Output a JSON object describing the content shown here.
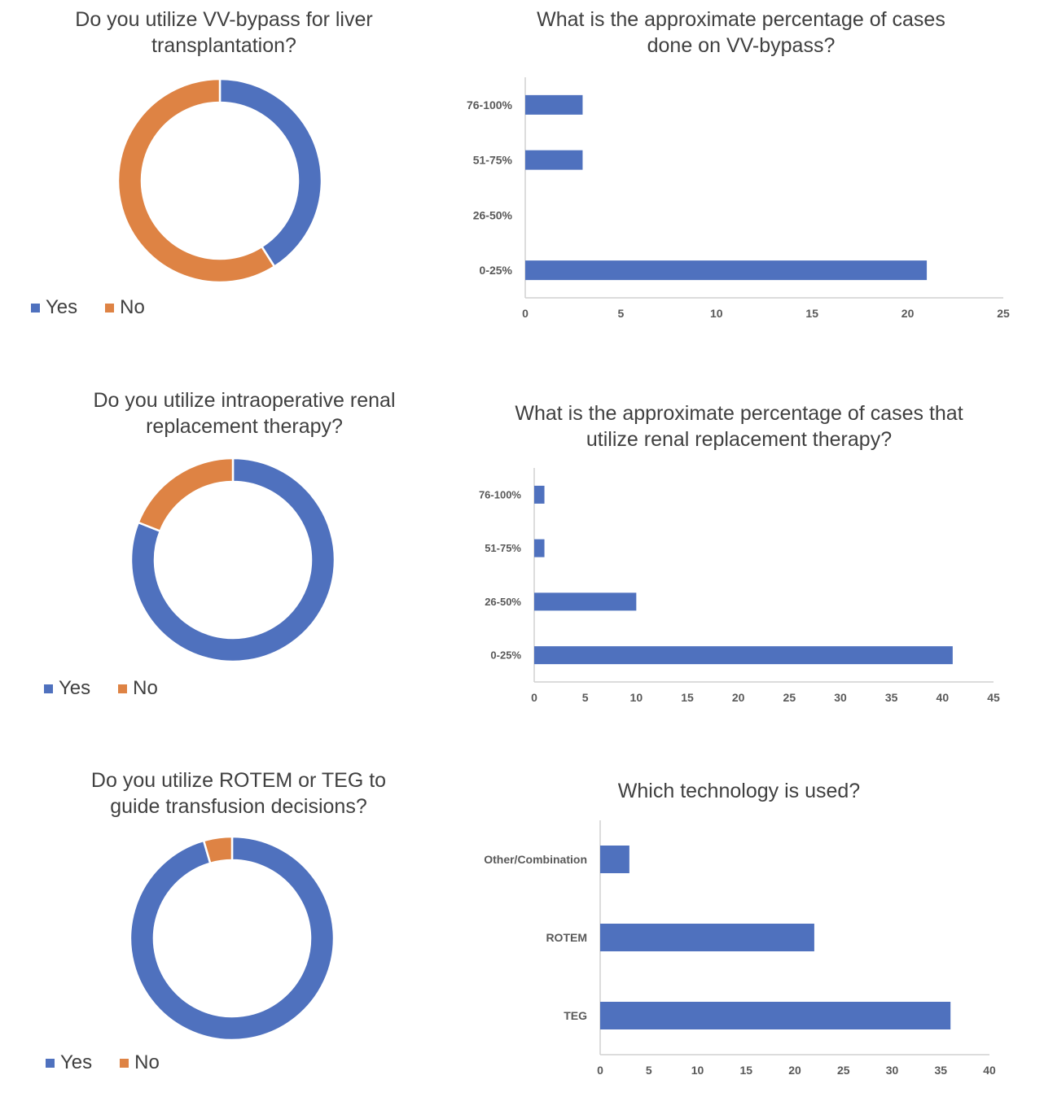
{
  "chart_data": [
    {
      "type": "pie",
      "title": "Do you utilize VV-bypass for liver transplantation?",
      "categories": [
        "Yes",
        "No"
      ],
      "values": [
        41,
        59
      ],
      "colors": [
        "#4f71be",
        "#de8344"
      ],
      "legend": "bottom-left"
    },
    {
      "type": "bar",
      "orientation": "horizontal",
      "title": "What is the approximate percentage of cases done on VV-bypass?",
      "categories": [
        "76-100%",
        "51-75%",
        "26-50%",
        "0-25%"
      ],
      "values": [
        3,
        3,
        0,
        21
      ],
      "xlim": [
        0,
        25
      ],
      "xticks": [
        0,
        5,
        10,
        15,
        20,
        25
      ],
      "color": "#4f71be",
      "grid": false
    },
    {
      "type": "pie",
      "title": "Do you utilize intraoperative renal replacement therapy?",
      "categories": [
        "Yes",
        "No"
      ],
      "values": [
        81,
        19
      ],
      "colors": [
        "#4f71be",
        "#de8344"
      ],
      "legend": "bottom-left"
    },
    {
      "type": "bar",
      "orientation": "horizontal",
      "title": "What is the approximate percentage of cases that utilize renal replacement therapy?",
      "categories": [
        "76-100%",
        "51-75%",
        "26-50%",
        "0-25%"
      ],
      "values": [
        1,
        1,
        10,
        41
      ],
      "xlim": [
        0,
        45
      ],
      "xticks": [
        0,
        5,
        10,
        15,
        20,
        25,
        30,
        35,
        40,
        45
      ],
      "color": "#4f71be",
      "grid": false
    },
    {
      "type": "pie",
      "title": "Do you utilize ROTEM or TEG to guide transfusion decisions?",
      "categories": [
        "Yes",
        "No"
      ],
      "values": [
        95.5,
        4.5
      ],
      "colors": [
        "#4f71be",
        "#de8344"
      ],
      "legend": "bottom-left"
    },
    {
      "type": "bar",
      "orientation": "horizontal",
      "title": "Which technology is used?",
      "categories": [
        "Other/Combination",
        "ROTEM",
        "TEG"
      ],
      "values": [
        3,
        22,
        36
      ],
      "xlim": [
        0,
        40
      ],
      "xticks": [
        0,
        5,
        10,
        15,
        20,
        25,
        30,
        35,
        40
      ],
      "color": "#4f71be",
      "grid": false
    }
  ]
}
